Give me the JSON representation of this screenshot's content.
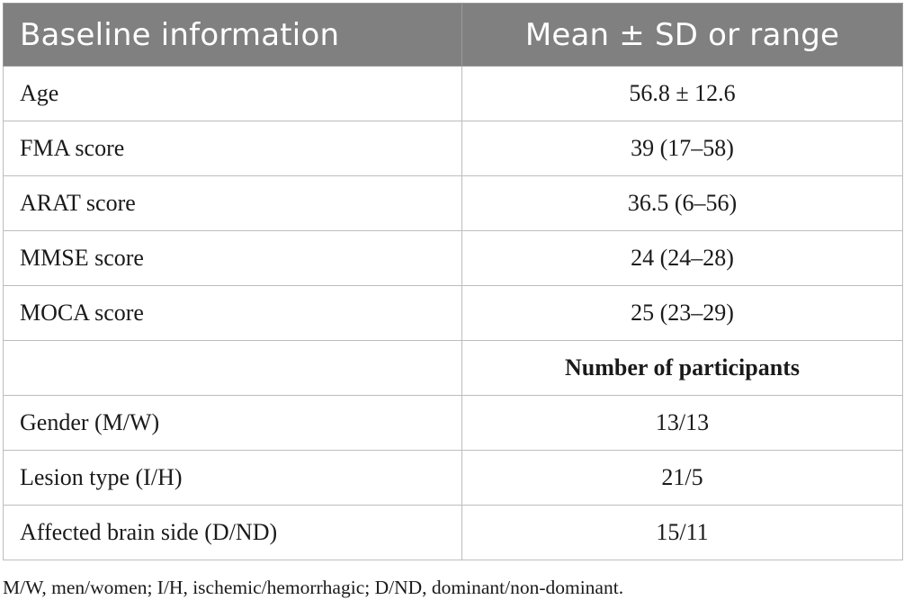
{
  "header": {
    "col1": "Baseline information",
    "col2": "Mean ± SD or range"
  },
  "rows_stats": [
    {
      "label": "Age",
      "value": "56.8 ± 12.6"
    },
    {
      "label": "FMA score",
      "value": "39 (17–58)"
    },
    {
      "label": "ARAT score",
      "value": "36.5 (6–56)"
    },
    {
      "label": "MMSE score",
      "value": "24 (24–28)"
    },
    {
      "label": "MOCA score",
      "value": "25 (23–29)"
    }
  ],
  "subheader": {
    "col1": "",
    "col2": "Number of participants"
  },
  "rows_counts": [
    {
      "label": "Gender (M/W)",
      "value": "13/13"
    },
    {
      "label": "Lesion type (I/H)",
      "value": "21/5"
    },
    {
      "label": "Affected brain side (D/ND)",
      "value": "15/11"
    }
  ],
  "footnote": "M/W, men/women; I/H, ischemic/hemorrhagic; D/ND, dominant/non-dominant."
}
